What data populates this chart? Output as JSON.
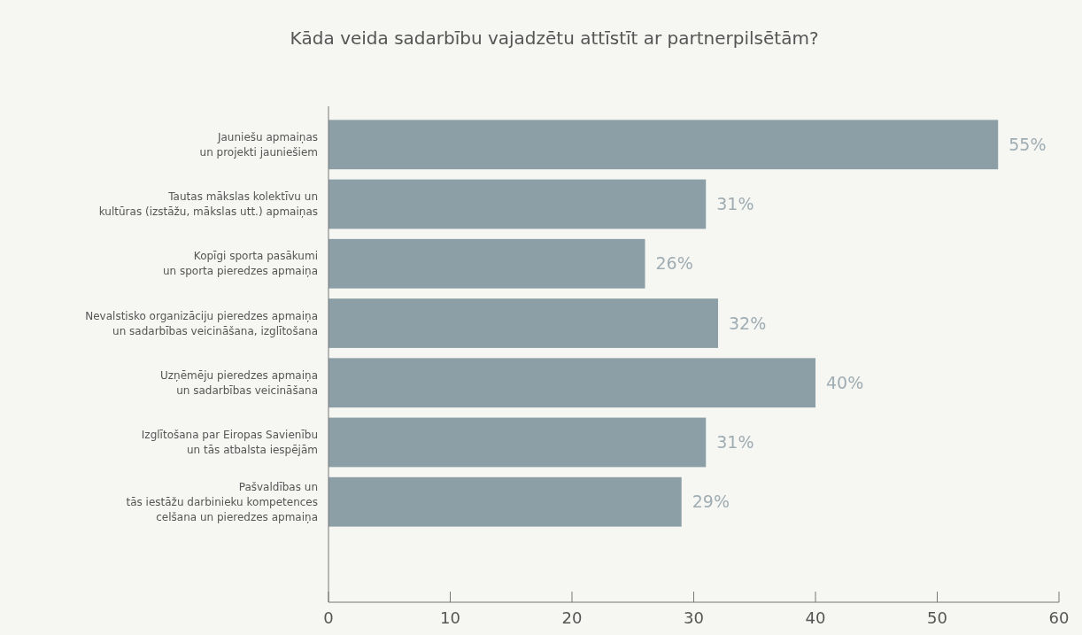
{
  "chart_data": {
    "type": "bar",
    "orientation": "horizontal",
    "title": "Kāda veida sadarbību vajadzētu attīstīt ar partnerpilsētām?",
    "categories": [
      "Jauniešu apmaiņas\nun projekti jauniešiem",
      "Tautas mākslas kolektīvu un\nkultūras (izstāžu, mākslas utt.) apmaiņas",
      "Kopīgi sporta pasākumi\nun sporta pieredzes apmaiņa",
      "Nevalstisko organizāciju pieredzes apmaiņa\nun sadarbības veicināšana, izglītošana",
      "Uzņēmēju pieredzes apmaiņa\nun sadarbības veicināšana",
      "Izglītošana par Eiropas Savienību\nun tās atbalsta iespējām",
      "Pašvaldības un\ntās iestāžu darbinieku kompetences\ncelšana un pieredzes apmaiņa"
    ],
    "values": [
      55,
      31,
      26,
      32,
      40,
      31,
      29
    ],
    "value_labels": [
      "55%",
      "31%",
      "26%",
      "32%",
      "40%",
      "31%",
      "29%"
    ],
    "color": "#8d9fa6",
    "xlim": [
      0,
      60
    ],
    "xticks": [
      0,
      10,
      20,
      30,
      40,
      50,
      60
    ],
    "grid": false
  }
}
